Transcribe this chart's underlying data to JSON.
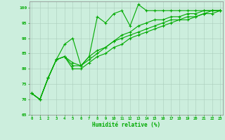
{
  "xlabel": "Humidité relative (%)",
  "bg_color": "#cceedd",
  "grid_color": "#aaccbb",
  "line_color": "#00aa00",
  "xlim": [
    0,
    23
  ],
  "ylim": [
    65,
    102
  ],
  "yticks": [
    65,
    70,
    75,
    80,
    85,
    90,
    95,
    100
  ],
  "xticks": [
    0,
    1,
    2,
    3,
    4,
    5,
    6,
    7,
    8,
    9,
    10,
    11,
    12,
    13,
    14,
    15,
    16,
    17,
    18,
    19,
    20,
    21,
    22,
    23
  ],
  "lines": [
    {
      "x": [
        0,
        1,
        2,
        3,
        4,
        5,
        6,
        7,
        8,
        9,
        10,
        11,
        12,
        13,
        14,
        15,
        16,
        17,
        18,
        19,
        20,
        21,
        22,
        23
      ],
      "y": [
        72,
        70,
        77,
        83,
        88,
        90,
        81,
        84,
        97,
        95,
        98,
        99,
        94,
        101,
        99,
        99,
        99,
        99,
        99,
        99,
        99,
        99,
        99,
        99
      ]
    },
    {
      "x": [
        0,
        1,
        2,
        3,
        4,
        5,
        6,
        7,
        8,
        9,
        10,
        11,
        12,
        13,
        14,
        15,
        16,
        17,
        18,
        19,
        20,
        21,
        22,
        23
      ],
      "y": [
        72,
        70,
        77,
        83,
        84,
        82,
        81,
        84,
        86,
        87,
        89,
        91,
        92,
        94,
        95,
        96,
        96,
        97,
        97,
        98,
        98,
        99,
        99,
        99
      ]
    },
    {
      "x": [
        0,
        1,
        2,
        3,
        4,
        5,
        6,
        7,
        8,
        9,
        10,
        11,
        12,
        13,
        14,
        15,
        16,
        17,
        18,
        19,
        20,
        21,
        22,
        23
      ],
      "y": [
        72,
        70,
        77,
        83,
        84,
        81,
        81,
        83,
        85,
        87,
        89,
        90,
        91,
        92,
        93,
        94,
        95,
        96,
        96,
        97,
        97,
        98,
        99,
        99
      ]
    },
    {
      "x": [
        0,
        1,
        2,
        3,
        4,
        5,
        6,
        7,
        8,
        9,
        10,
        11,
        12,
        13,
        14,
        15,
        16,
        17,
        18,
        19,
        20,
        21,
        22,
        23
      ],
      "y": [
        72,
        70,
        77,
        83,
        84,
        80,
        80,
        82,
        84,
        85,
        87,
        88,
        90,
        91,
        92,
        93,
        94,
        95,
        96,
        96,
        97,
        98,
        98,
        99
      ]
    }
  ]
}
